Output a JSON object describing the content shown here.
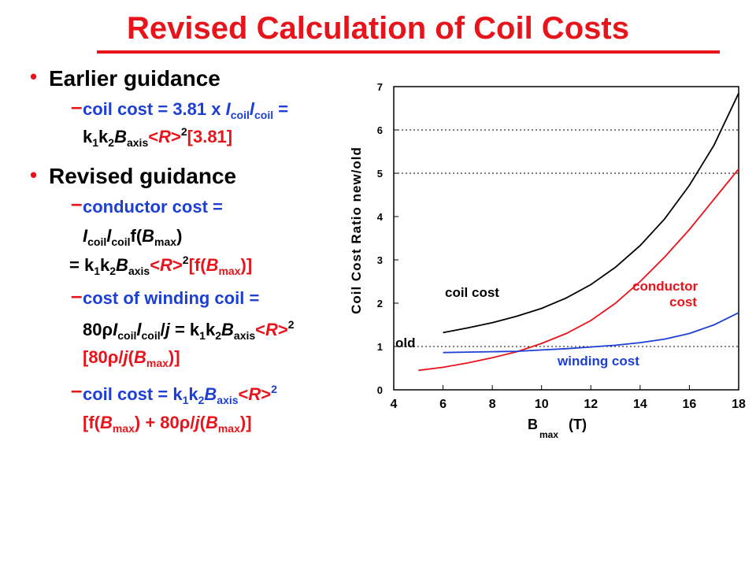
{
  "slide": {
    "title": "Revised Calculation of Coil Costs",
    "earlier_heading": "Earlier guidance",
    "revised_heading": "Revised guidance",
    "lines": {
      "e1": "coil cost = 3.81 x ",
      "e1b": " =",
      "r1": "conductor cost =",
      "r3a": "= k",
      "r4": "cost of winding coil =",
      "r5a": "80",
      "r5b": " = k",
      "r7": "coil cost = k",
      "r8a": "[f(",
      "r8b": ") + 80",
      "r8c": "(",
      "r8d": ")]"
    }
  },
  "chart_data": {
    "type": "line",
    "title": "",
    "xlabel": "B",
    "xlabel_sub": "max",
    "xlabel_unit": "(T)",
    "ylabel": "Coil Cost Ratio new/old",
    "xlim": [
      4,
      18
    ],
    "ylim": [
      0,
      7
    ],
    "x_ticks": [
      4,
      6,
      8,
      10,
      12,
      14,
      16,
      18
    ],
    "y_ticks": [
      0,
      1,
      2,
      3,
      4,
      5,
      6,
      7
    ],
    "dotted_lines_y": [
      1,
      5,
      6
    ],
    "series": [
      {
        "name": "coil cost",
        "color": "#000000",
        "x": [
          6,
          7,
          8,
          9,
          10,
          11,
          12,
          13,
          14,
          15,
          16,
          17,
          18
        ],
        "y": [
          1.32,
          1.43,
          1.55,
          1.7,
          1.88,
          2.12,
          2.43,
          2.83,
          3.33,
          3.95,
          4.72,
          5.65,
          6.85
        ]
      },
      {
        "name": "conductor cost",
        "color": "#e8141c",
        "x": [
          5,
          6,
          7,
          8,
          9,
          10,
          11,
          12,
          13,
          14,
          15,
          16,
          17,
          18
        ],
        "y": [
          0.45,
          0.52,
          0.62,
          0.74,
          0.88,
          1.07,
          1.3,
          1.6,
          2.0,
          2.5,
          3.07,
          3.7,
          4.4,
          5.1
        ]
      },
      {
        "name": "winding cost",
        "color": "#1d3fd4",
        "x": [
          6,
          7,
          8,
          9,
          10,
          11,
          12,
          13,
          14,
          15,
          16,
          17,
          18
        ],
        "y": [
          0.86,
          0.87,
          0.88,
          0.89,
          0.92,
          0.95,
          0.99,
          1.03,
          1.09,
          1.17,
          1.3,
          1.5,
          1.78
        ]
      }
    ],
    "annotations": [
      {
        "text": "coil cost",
        "color": "#000000"
      },
      {
        "text": "conductor",
        "color": "#e8141c"
      },
      {
        "text": "cost",
        "color": "#e8141c"
      },
      {
        "text": "winding cost",
        "color": "#1d3fd4"
      },
      {
        "text": "old",
        "color": "#000000"
      }
    ]
  }
}
